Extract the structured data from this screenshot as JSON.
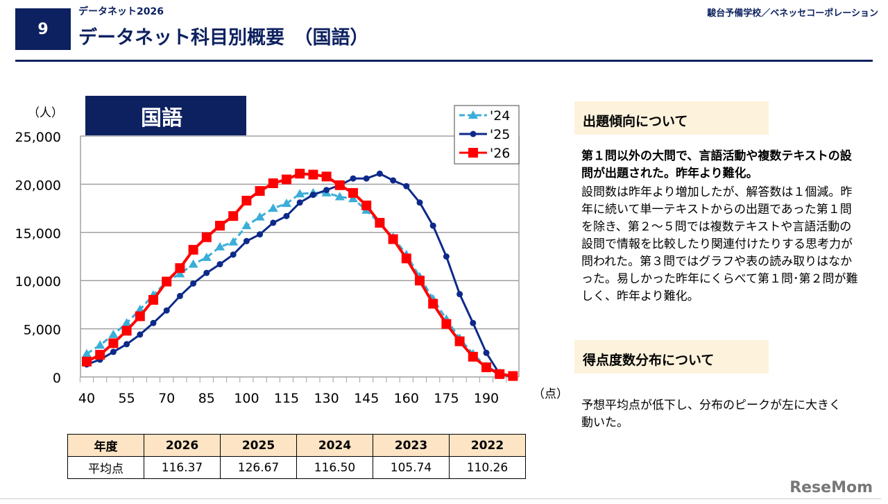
{
  "header": {
    "slide_number": "9",
    "subtitle": "データネット2026",
    "title": "データネット科目別概要　（国語）",
    "organization": "駿台予備学校／ベネッセコーポレーション"
  },
  "chart_data": {
    "type": "line",
    "title": "国語",
    "ylabel": "（人）",
    "xlabel": "（点）",
    "ylim": [
      0,
      25000
    ],
    "yticks": [
      0,
      5000,
      10000,
      15000,
      20000,
      25000
    ],
    "ytick_labels": [
      "0",
      "5,000",
      "10,000",
      "15,000",
      "20,000",
      "25,000"
    ],
    "xlim": [
      40,
      200
    ],
    "xticks": [
      40,
      55,
      70,
      85,
      100,
      115,
      130,
      145,
      160,
      175,
      190
    ],
    "x": [
      40,
      45,
      50,
      55,
      60,
      65,
      70,
      75,
      80,
      85,
      90,
      95,
      100,
      105,
      110,
      115,
      120,
      125,
      130,
      135,
      140,
      145,
      150,
      155,
      160,
      165,
      170,
      175,
      180,
      185,
      190,
      195,
      200
    ],
    "grid": "horizontal",
    "legend": "top-right",
    "series": [
      {
        "name": "'24",
        "color": "#3aaed8",
        "style": "dashed-triangle",
        "values": [
          2400,
          3300,
          4400,
          5600,
          7000,
          8500,
          9900,
          10700,
          11700,
          12400,
          13500,
          14000,
          15700,
          16600,
          17500,
          18000,
          19000,
          19100,
          19100,
          18700,
          18500,
          17300,
          15900,
          14500,
          12700,
          10400,
          8100,
          6000,
          4000,
          2400,
          1100,
          400,
          100
        ]
      },
      {
        "name": "'25",
        "color": "#0d2a8a",
        "style": "solid-circle",
        "values": [
          1300,
          1800,
          2600,
          3400,
          4400,
          5600,
          6900,
          8400,
          9700,
          10800,
          11700,
          12700,
          14100,
          14800,
          16000,
          16700,
          18100,
          18900,
          19400,
          19900,
          20600,
          20600,
          21100,
          20400,
          19800,
          18100,
          15700,
          12500,
          8600,
          5600,
          2500,
          300,
          0
        ]
      },
      {
        "name": "'26",
        "color": "#ff0000",
        "style": "solid-square",
        "values": [
          1600,
          2300,
          3500,
          4800,
          6300,
          8000,
          9900,
          11300,
          13200,
          14500,
          15700,
          16700,
          18300,
          19300,
          20100,
          20500,
          21100,
          21000,
          20800,
          19900,
          19100,
          17800,
          16000,
          14300,
          12300,
          10000,
          7600,
          5500,
          3700,
          2100,
          1000,
          300,
          100
        ]
      }
    ]
  },
  "table": {
    "header": [
      "年度",
      "2026",
      "2025",
      "2024",
      "2023",
      "2022"
    ],
    "row": [
      "平均点",
      "116.37",
      "126.67",
      "116.50",
      "105.74",
      "110.26"
    ]
  },
  "panel": {
    "heading1": "出題傾向について",
    "bold_text": "第１問以外の大問で、言語活動や複数テキストの設問が出題された。昨年より難化。",
    "body1": "設問数は昨年より増加したが、解答数は１個減。昨年に続いて単一テキストからの出題であった第１問を除き、第２～５問では複数テキストや言語活動の設問で情報を比較したり関連付けたりする思考力が問われた。第３問ではグラフや表の読み取りはなかった。易しかった昨年にくらべて第１問･第２問が難しく、昨年より難化。",
    "heading2": "得点度数分布について",
    "body2": "予想平均点が低下し、分布のピークが左に大きく動いた。"
  },
  "watermark": "ReseMom"
}
